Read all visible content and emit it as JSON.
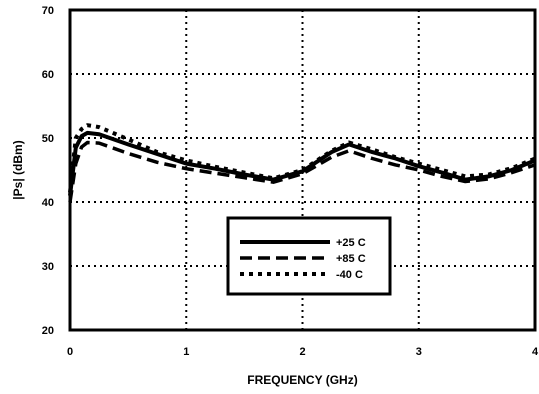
{
  "chart_data": {
    "type": "line",
    "xlabel": "FREQUENCY (GHz)",
    "ylabel": "|Ps| (dBm)",
    "xlim": [
      0,
      4
    ],
    "ylim": [
      20,
      70
    ],
    "x_ticks": [
      "0",
      "1",
      "2",
      "3",
      "4"
    ],
    "y_ticks": [
      "70",
      "60",
      "50",
      "40",
      "30",
      "20"
    ],
    "grid": true,
    "legend_position": "center-right",
    "series": [
      {
        "name": "+25 C",
        "style": "solid",
        "x": [
          0.0,
          0.05,
          0.1,
          0.15,
          0.25,
          0.5,
          0.75,
          1.0,
          1.25,
          1.5,
          1.75,
          2.0,
          2.25,
          2.4,
          2.6,
          2.8,
          3.0,
          3.2,
          3.4,
          3.6,
          3.8,
          4.0
        ],
        "y": [
          41.0,
          48.5,
          50.3,
          50.8,
          50.6,
          49.0,
          47.5,
          46.0,
          45.2,
          44.3,
          43.5,
          44.8,
          47.8,
          49.0,
          47.8,
          46.8,
          45.6,
          44.6,
          43.5,
          44.0,
          45.0,
          46.5
        ]
      },
      {
        "name": "+85 C",
        "style": "dashed",
        "x": [
          0.0,
          0.05,
          0.1,
          0.15,
          0.25,
          0.5,
          0.75,
          1.0,
          1.25,
          1.5,
          1.75,
          2.0,
          2.25,
          2.4,
          2.6,
          2.8,
          3.0,
          3.2,
          3.4,
          3.6,
          3.8,
          4.0
        ],
        "y": [
          40.0,
          46.0,
          48.6,
          49.3,
          49.2,
          47.6,
          46.2,
          45.2,
          44.5,
          43.8,
          43.1,
          44.4,
          47.0,
          48.0,
          46.8,
          45.8,
          45.0,
          44.0,
          43.2,
          43.6,
          44.6,
          45.8
        ]
      },
      {
        "name": "-40 C",
        "style": "dotted",
        "x": [
          0.0,
          0.05,
          0.1,
          0.15,
          0.25,
          0.5,
          0.75,
          1.0,
          1.25,
          1.5,
          1.75,
          2.0,
          2.25,
          2.4,
          2.6,
          2.8,
          3.0,
          3.2,
          3.4,
          3.6,
          3.8,
          4.0
        ],
        "y": [
          41.5,
          50.0,
          51.4,
          52.0,
          51.7,
          49.8,
          47.8,
          46.5,
          45.5,
          44.6,
          43.7,
          45.0,
          48.0,
          49.3,
          48.2,
          47.0,
          46.0,
          45.0,
          44.0,
          44.3,
          45.3,
          46.8
        ]
      }
    ]
  }
}
